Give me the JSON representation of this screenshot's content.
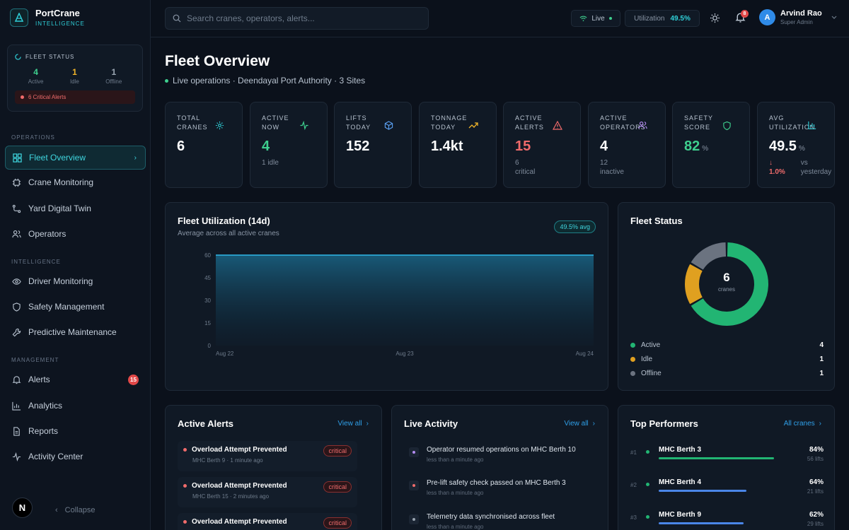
{
  "brand": {
    "name": "PortCrane",
    "sub": "INTELLIGENCE"
  },
  "sidebar": {
    "fleet_status": {
      "title": "FLEET STATUS",
      "stats": [
        {
          "value": "4",
          "label": "Active",
          "color": "#3ecf8e"
        },
        {
          "value": "1",
          "label": "Idle",
          "color": "#f0b429"
        },
        {
          "value": "1",
          "label": "Offline",
          "color": "#9aa5b1"
        }
      ],
      "alert": "6 Critical Alerts"
    },
    "sections": {
      "operations": "OPERATIONS",
      "intelligence": "INTELLIGENCE",
      "management": "MANAGEMENT"
    },
    "items": [
      {
        "label": "Fleet Overview",
        "icon": "grid-icon"
      },
      {
        "label": "Crane Monitoring",
        "icon": "chip-icon"
      },
      {
        "label": "Yard Digital Twin",
        "icon": "route-icon"
      },
      {
        "label": "Operators",
        "icon": "users-icon"
      },
      {
        "label": "Driver Monitoring",
        "icon": "eye-icon"
      },
      {
        "label": "Safety Management",
        "icon": "shield-icon"
      },
      {
        "label": "Predictive Maintenance",
        "icon": "wrench-icon"
      },
      {
        "label": "Alerts",
        "icon": "bell-icon",
        "badge": "15"
      },
      {
        "label": "Analytics",
        "icon": "bar-chart-icon"
      },
      {
        "label": "Reports",
        "icon": "document-icon"
      },
      {
        "label": "Activity Center",
        "icon": "activity-icon"
      }
    ],
    "avatar_letter": "N",
    "collapse": "Collapse"
  },
  "topbar": {
    "search_placeholder": "Search cranes, operators, alerts...",
    "live": "Live",
    "util_label": "Utilization",
    "util_value": "49.5%",
    "notif_count": "8",
    "user": {
      "initial": "A",
      "name": "Arvind Rao",
      "role": "Super Admin"
    }
  },
  "page": {
    "title": "Fleet Overview",
    "subtitle": "Live operations · Deendayal Port Authority · 3 Sites"
  },
  "stats": [
    {
      "l1": "TOTAL",
      "l2": "CRANES",
      "value": "6",
      "unit": "",
      "sub": "",
      "sub2": "",
      "color": "#ffffff",
      "icon_color": "#2fd0d9",
      "icon": "gear-icon"
    },
    {
      "l1": "ACTIVE",
      "l2": "NOW",
      "value": "4",
      "unit": "",
      "sub": "1 idle",
      "sub2": "",
      "color": "#3ecf8e",
      "icon_color": "#3ecf8e",
      "icon": "pulse-icon"
    },
    {
      "l1": "LIFTS",
      "l2": "TODAY",
      "value": "152",
      "unit": "",
      "sub": "",
      "sub2": "",
      "color": "#ffffff",
      "icon_color": "#5aa0f2",
      "icon": "cube-icon"
    },
    {
      "l1": "TONNAGE",
      "l2": "TODAY",
      "value": "1.4kt",
      "unit": "",
      "sub": "",
      "sub2": "",
      "color": "#ffffff",
      "icon_color": "#f0b429",
      "icon": "trend-up-icon"
    },
    {
      "l1": "ACTIVE",
      "l2": "ALERTS",
      "value": "15",
      "unit": "",
      "sub": "6",
      "sub2": "critical",
      "color": "#f06b6b",
      "icon_color": "#f06b6b",
      "icon": "warning-icon"
    },
    {
      "l1": "ACTIVE",
      "l2": "OPERATORS",
      "value": "4",
      "unit": "",
      "sub": "12",
      "sub2": "inactive",
      "color": "#ffffff",
      "icon_color": "#b48cf2",
      "icon": "users-icon"
    },
    {
      "l1": "SAFETY",
      "l2": "SCORE",
      "value": "82",
      "unit": "%",
      "sub": "",
      "sub2": "",
      "color": "#3ecf8e",
      "icon_color": "#3ecf8e",
      "icon": "shield-icon"
    },
    {
      "l1": "AVG",
      "l2": "UTILIZATION",
      "value": "49.5",
      "unit": "%",
      "sub": "",
      "sub2": "",
      "color": "#ffffff",
      "icon_color": "#2fd0d9",
      "icon": "bar-chart-icon",
      "delta": "1.0%",
      "delta_note": "vs yesterday"
    }
  ],
  "utilization": {
    "title": "Fleet Utilization (14d)",
    "subtitle": "Average across all active cranes",
    "badge": "49.5% avg"
  },
  "chart_data": {
    "type": "area",
    "title": "Fleet Utilization (14d)",
    "x": [
      "Aug 22",
      "Aug 23",
      "Aug 24"
    ],
    "values": [
      60,
      60,
      60
    ],
    "yticks": [
      0,
      15,
      30,
      45,
      60
    ],
    "ylim": [
      0,
      60
    ],
    "grid": false,
    "color": "#2fb8e8"
  },
  "fleet_status": {
    "title": "Fleet Status",
    "center_value": "6",
    "center_label": "cranes",
    "segments": [
      {
        "label": "Active",
        "value": 4,
        "color": "#22b573"
      },
      {
        "label": "Idle",
        "value": 1,
        "color": "#e0a020"
      },
      {
        "label": "Offline",
        "value": 1,
        "color": "#6b7380"
      }
    ]
  },
  "alerts": {
    "title": "Active Alerts",
    "view_all": "View all",
    "items": [
      {
        "title": "Overload Attempt Prevented",
        "meta": "MHC Berth 9 · 1 minute ago",
        "level": "critical"
      },
      {
        "title": "Overload Attempt Prevented",
        "meta": "MHC Berth 15 · 2 minutes ago",
        "level": "critical"
      },
      {
        "title": "Overload Attempt Prevented",
        "meta": "",
        "level": "critical"
      }
    ]
  },
  "activity": {
    "title": "Live Activity",
    "view_all": "View all",
    "items": [
      {
        "text": "Operator resumed operations on MHC Berth 10",
        "time": "less than a minute ago",
        "color": "#b48cf2"
      },
      {
        "text": "Pre-lift safety check passed on MHC Berth 3",
        "time": "less than a minute ago",
        "color": "#f06b6b"
      },
      {
        "text": "Telemetry data synchronised across fleet",
        "time": "less than a minute ago",
        "color": "#9aa5b1"
      }
    ]
  },
  "performers": {
    "title": "Top Performers",
    "link": "All cranes",
    "items": [
      {
        "rank": "#1",
        "name": "MHC Berth 3",
        "pct": "84%",
        "lifts": "56 lifts",
        "value": 0.84,
        "color": "#22b573"
      },
      {
        "rank": "#2",
        "name": "MHC Berth 4",
        "pct": "64%",
        "lifts": "21 lifts",
        "value": 0.64,
        "color": "#4a86e8"
      },
      {
        "rank": "#3",
        "name": "MHC Berth 9",
        "pct": "62%",
        "lifts": "29 lifts",
        "value": 0.62,
        "color": "#4a86e8"
      }
    ]
  }
}
